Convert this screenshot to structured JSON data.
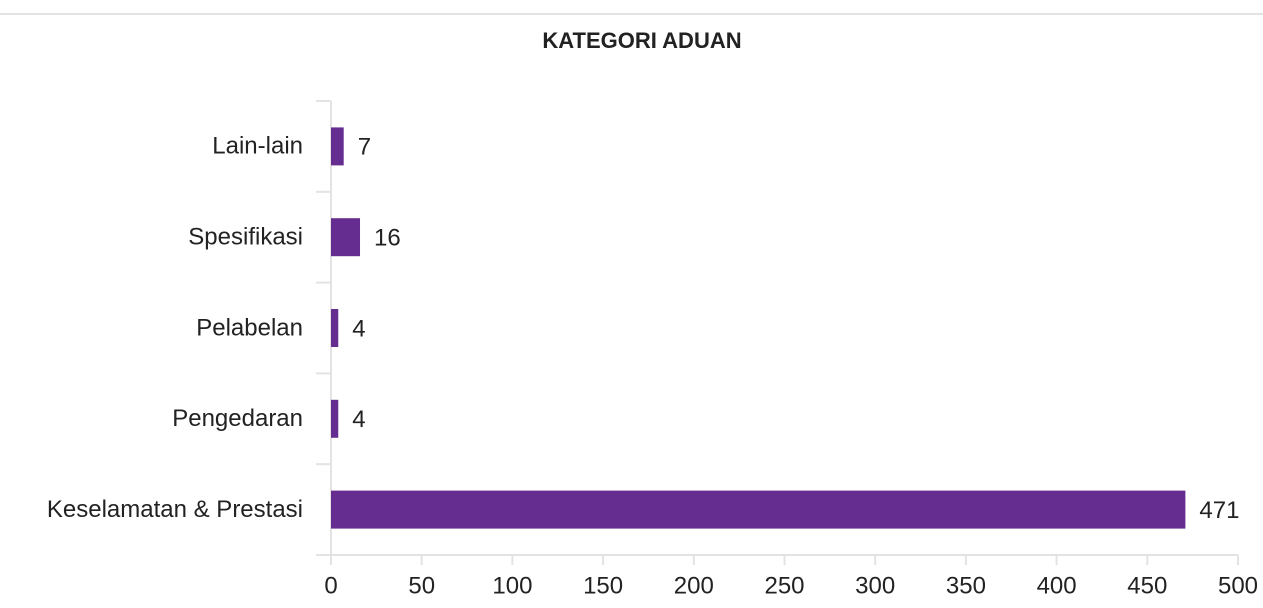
{
  "chart_data": {
    "type": "hbar",
    "title": "KATEGORI ADUAN",
    "categories": [
      "Lain-lain",
      "Spesifikasi",
      "Pelabelan",
      "Pengedaran",
      "Keselamatan & Prestasi"
    ],
    "values": [
      7,
      16,
      4,
      4,
      471
    ],
    "color": "#662d91",
    "xlim": [
      0,
      500
    ],
    "xticks": [
      0,
      50,
      100,
      150,
      200,
      250,
      300,
      350,
      400,
      450,
      500
    ]
  }
}
